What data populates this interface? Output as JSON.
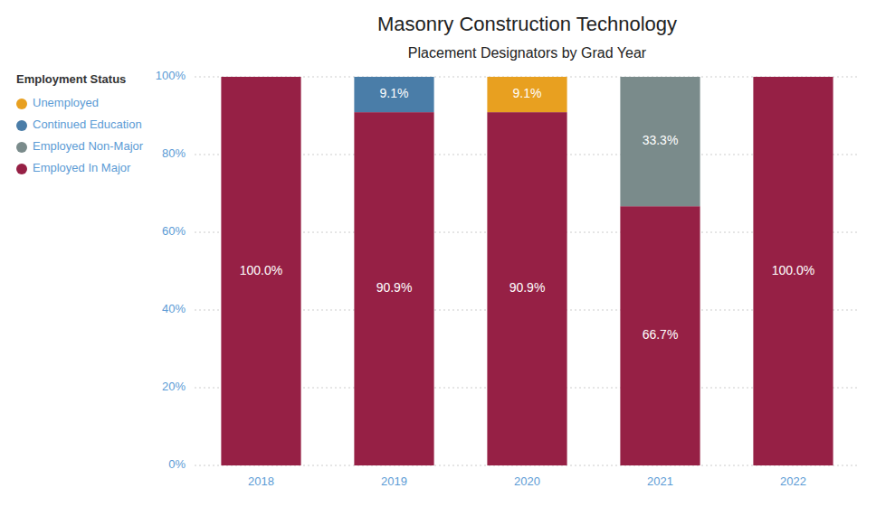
{
  "chart_data": {
    "type": "bar",
    "title": "Masonry Construction Technology",
    "subtitle": "Placement Designators by Grad Year",
    "legend_title": "Employment Status",
    "categories": [
      "2018",
      "2019",
      "2020",
      "2021",
      "2022"
    ],
    "series": [
      {
        "name": "Employed In Major",
        "color": "#962045",
        "values": [
          100.0,
          90.9,
          90.9,
          66.7,
          100.0
        ],
        "value_labels": [
          "100.0%",
          "90.9%",
          "90.9%",
          "66.7%",
          "100.0%"
        ]
      },
      {
        "name": "Employed Non-Major",
        "color": "#7A8B8B",
        "values": [
          0.0,
          0.0,
          0.0,
          33.3,
          0.0
        ],
        "value_labels": [
          null,
          null,
          null,
          "33.3%",
          null
        ]
      },
      {
        "name": "Continued Education",
        "color": "#4A7DA8",
        "values": [
          0.0,
          9.1,
          0.0,
          0.0,
          0.0
        ],
        "value_labels": [
          null,
          "9.1%",
          null,
          null,
          null
        ]
      },
      {
        "name": "Unemployed",
        "color": "#E8A020",
        "values": [
          0.0,
          0.0,
          9.1,
          0.0,
          0.0
        ],
        "value_labels": [
          null,
          null,
          "9.1%",
          null,
          null
        ]
      }
    ],
    "stacked": true,
    "data_labels": true,
    "ylim": [
      0,
      100
    ],
    "yticks": [
      {
        "value": 0,
        "label": "0%"
      },
      {
        "value": 20,
        "label": "20%"
      },
      {
        "value": 40,
        "label": "40%"
      },
      {
        "value": 60,
        "label": "60%"
      },
      {
        "value": 80,
        "label": "80%"
      },
      {
        "value": 100,
        "label": "100%"
      }
    ],
    "grid": true,
    "legend": "upper left"
  }
}
